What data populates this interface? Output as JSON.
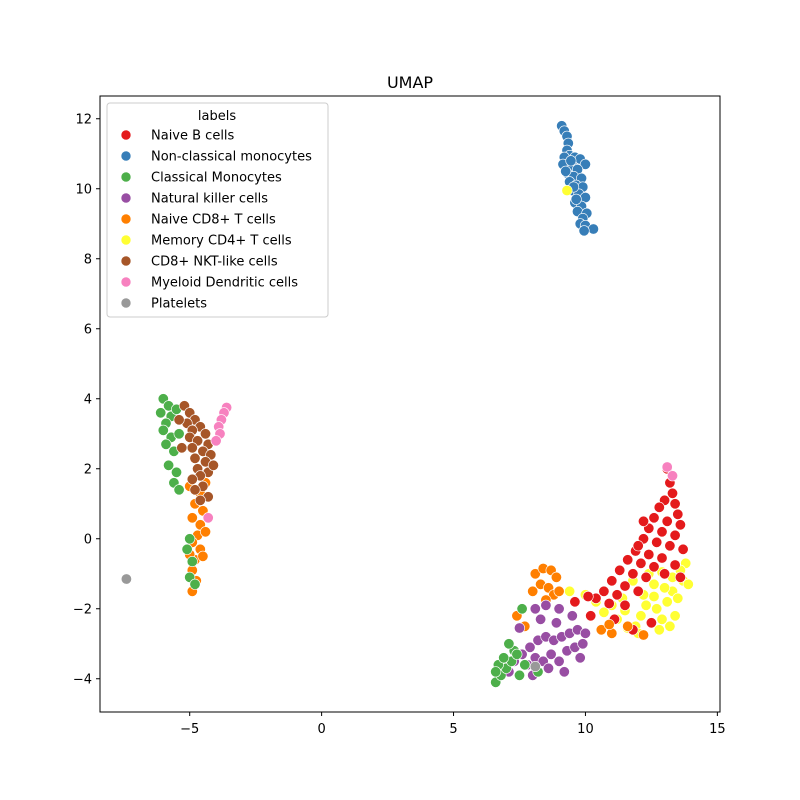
{
  "chart_data": {
    "type": "scatter",
    "title": "UMAP",
    "xlabel": "",
    "ylabel": "",
    "xlim": [
      -8.4,
      15.1
    ],
    "ylim": [
      -4.95,
      12.65
    ],
    "xticks": [
      -5,
      0,
      5,
      10,
      15
    ],
    "yticks": [
      -4,
      -2,
      0,
      2,
      4,
      6,
      8,
      10,
      12
    ],
    "grid": false,
    "legend": {
      "title": "labels",
      "placement": "top-left",
      "entries": [
        "Naive B cells",
        "Non-classical monocytes",
        "Classical Monocytes",
        "Natural killer  cells",
        "Naive CD8+ T cells",
        "Memory CD4+ T cells",
        "CD8+ NKT-like cells",
        "Myeloid Dendritic cells",
        "Platelets"
      ]
    },
    "colors": {
      "Naive B cells": "#e41a1c",
      "Non-classical monocytes": "#377eb8",
      "Classical Monocytes": "#4daf4a",
      "Natural killer  cells": "#984ea3",
      "Naive CD8+ T cells": "#ff7f00",
      "Memory CD4+ T cells": "#ffff33",
      "CD8+ NKT-like cells": "#a65628",
      "Myeloid Dendritic cells": "#f781bf",
      "Platelets": "#999999"
    },
    "series": [
      {
        "name": "Non-classical monocytes",
        "points": [
          [
            9.1,
            11.8
          ],
          [
            9.2,
            11.65
          ],
          [
            9.3,
            11.5
          ],
          [
            9.35,
            11.3
          ],
          [
            9.3,
            11.1
          ],
          [
            9.4,
            10.95
          ],
          [
            9.2,
            10.9
          ],
          [
            9.6,
            10.9
          ],
          [
            9.8,
            10.85
          ],
          [
            10.0,
            10.7
          ],
          [
            9.15,
            10.7
          ],
          [
            9.5,
            10.65
          ],
          [
            9.7,
            10.55
          ],
          [
            9.3,
            10.45
          ],
          [
            9.55,
            10.35
          ],
          [
            9.85,
            10.3
          ],
          [
            9.4,
            10.2
          ],
          [
            9.65,
            10.1
          ],
          [
            9.9,
            10.05
          ],
          [
            9.5,
            9.95
          ],
          [
            9.75,
            9.85
          ],
          [
            10.0,
            9.75
          ],
          [
            9.6,
            9.6
          ],
          [
            9.85,
            9.5
          ],
          [
            9.7,
            9.35
          ],
          [
            10.05,
            9.3
          ],
          [
            9.9,
            9.15
          ],
          [
            9.8,
            9.0
          ],
          [
            10.0,
            8.95
          ],
          [
            10.3,
            8.85
          ],
          [
            9.95,
            8.8
          ],
          [
            9.25,
            10.5
          ],
          [
            9.45,
            10.8
          ],
          [
            9.65,
            9.7
          ],
          [
            9.55,
            10.05
          ]
        ]
      },
      {
        "name": "Memory CD4+ T cells",
        "points": [
          [
            9.3,
            9.95
          ],
          [
            9.4,
            -1.5
          ],
          [
            10.0,
            -1.6
          ],
          [
            10.7,
            -2.1
          ],
          [
            11.2,
            -2.3
          ],
          [
            11.5,
            -2.05
          ],
          [
            11.9,
            -2.5
          ],
          [
            12.1,
            -2.2
          ],
          [
            12.3,
            -1.9
          ],
          [
            12.5,
            -2.4
          ],
          [
            12.7,
            -2.0
          ],
          [
            12.9,
            -2.3
          ],
          [
            13.1,
            -1.8
          ],
          [
            13.3,
            -1.5
          ],
          [
            13.5,
            -1.7
          ],
          [
            13.7,
            -1.2
          ],
          [
            13.8,
            -0.7
          ],
          [
            13.6,
            -0.9
          ],
          [
            13.3,
            -1.1
          ],
          [
            13.0,
            -1.4
          ],
          [
            12.6,
            -1.3
          ],
          [
            12.2,
            -1.6
          ],
          [
            11.8,
            -1.2
          ],
          [
            11.4,
            -1.7
          ],
          [
            12.8,
            -2.6
          ],
          [
            12.0,
            -2.7
          ],
          [
            11.6,
            -2.55
          ],
          [
            13.4,
            -2.2
          ],
          [
            12.4,
            -1.0
          ],
          [
            13.9,
            -1.3
          ],
          [
            11.0,
            -1.9
          ],
          [
            10.4,
            -1.8
          ],
          [
            12.6,
            -1.65
          ],
          [
            13.2,
            -2.5
          ],
          [
            12.9,
            -0.95
          ]
        ]
      },
      {
        "name": "Naive B cells",
        "points": [
          [
            13.1,
            2.0
          ],
          [
            13.2,
            1.6
          ],
          [
            13.3,
            1.3
          ],
          [
            13.0,
            1.1
          ],
          [
            13.4,
            1.0
          ],
          [
            12.8,
            0.9
          ],
          [
            13.5,
            0.7
          ],
          [
            12.6,
            0.6
          ],
          [
            13.1,
            0.5
          ],
          [
            13.6,
            0.4
          ],
          [
            12.4,
            0.3
          ],
          [
            12.9,
            0.2
          ],
          [
            13.4,
            0.1
          ],
          [
            12.2,
            0.0
          ],
          [
            12.7,
            -0.1
          ],
          [
            13.2,
            -0.2
          ],
          [
            13.7,
            -0.3
          ],
          [
            11.9,
            -0.35
          ],
          [
            12.4,
            -0.45
          ],
          [
            12.9,
            -0.55
          ],
          [
            11.6,
            -0.6
          ],
          [
            12.1,
            -0.7
          ],
          [
            13.4,
            -0.75
          ],
          [
            11.3,
            -0.9
          ],
          [
            11.8,
            -1.0
          ],
          [
            12.3,
            -1.1
          ],
          [
            13.0,
            -1.0
          ],
          [
            11.0,
            -1.2
          ],
          [
            11.5,
            -1.35
          ],
          [
            10.7,
            -1.5
          ],
          [
            11.2,
            -1.6
          ],
          [
            10.4,
            -1.7
          ],
          [
            10.9,
            -1.85
          ],
          [
            10.1,
            -1.65
          ],
          [
            11.5,
            -1.9
          ],
          [
            12.0,
            -1.5
          ],
          [
            12.6,
            -0.8
          ],
          [
            13.6,
            -1.1
          ],
          [
            12.5,
            -2.4
          ],
          [
            11.8,
            -2.6
          ],
          [
            9.6,
            -1.8
          ],
          [
            10.2,
            -2.2
          ],
          [
            11.1,
            -2.3
          ],
          [
            12.2,
            0.5
          ],
          [
            12.0,
            -0.2
          ]
        ]
      },
      {
        "name": "Naive CD8+ T cells",
        "points": [
          [
            8.1,
            -1.0
          ],
          [
            8.4,
            -0.85
          ],
          [
            8.7,
            -0.9
          ],
          [
            8.9,
            -1.1
          ],
          [
            8.3,
            -1.3
          ],
          [
            8.6,
            -1.4
          ],
          [
            8.0,
            -1.5
          ],
          [
            8.8,
            -1.6
          ],
          [
            8.5,
            -1.75
          ],
          [
            9.0,
            -1.5
          ],
          [
            7.4,
            -2.2
          ],
          [
            7.7,
            -2.5
          ],
          [
            10.6,
            -2.6
          ],
          [
            11.0,
            -2.7
          ],
          [
            11.6,
            -2.5
          ],
          [
            12.2,
            -2.75
          ],
          [
            10.9,
            -2.45
          ],
          [
            -5.0,
            1.5
          ],
          [
            -4.6,
            1.3
          ],
          [
            -4.4,
            1.6
          ],
          [
            -4.8,
            1.0
          ],
          [
            -4.5,
            0.8
          ],
          [
            -4.9,
            0.6
          ],
          [
            -4.6,
            0.4
          ],
          [
            -4.7,
            0.1
          ],
          [
            -4.9,
            -0.1
          ],
          [
            -4.6,
            -0.3
          ],
          [
            -4.8,
            -0.6
          ],
          [
            -4.9,
            -0.9
          ],
          [
            -4.75,
            -1.2
          ],
          [
            -4.9,
            -1.5
          ],
          [
            -4.5,
            -0.5
          ],
          [
            -4.4,
            0.2
          ],
          [
            -5.0,
            -0.45
          ]
        ]
      },
      {
        "name": "Natural killer  cells",
        "points": [
          [
            7.3,
            -3.5
          ],
          [
            7.6,
            -3.3
          ],
          [
            7.9,
            -3.1
          ],
          [
            8.2,
            -2.9
          ],
          [
            8.5,
            -2.8
          ],
          [
            8.8,
            -2.9
          ],
          [
            9.1,
            -2.8
          ],
          [
            9.4,
            -2.7
          ],
          [
            9.7,
            -2.6
          ],
          [
            10.0,
            -2.7
          ],
          [
            7.8,
            -3.6
          ],
          [
            8.1,
            -3.4
          ],
          [
            8.4,
            -3.5
          ],
          [
            8.7,
            -3.3
          ],
          [
            9.0,
            -3.5
          ],
          [
            9.3,
            -3.2
          ],
          [
            9.6,
            -3.1
          ],
          [
            9.9,
            -3.0
          ],
          [
            8.0,
            -3.9
          ],
          [
            8.6,
            -3.7
          ],
          [
            9.2,
            -3.8
          ],
          [
            8.3,
            -2.3
          ],
          [
            8.9,
            -2.4
          ],
          [
            9.5,
            -2.2
          ],
          [
            8.1,
            -2.0
          ],
          [
            7.5,
            -2.55
          ],
          [
            9.8,
            -3.4
          ],
          [
            7.1,
            -3.8
          ],
          [
            8.5,
            -1.9
          ],
          [
            9.0,
            -2.0
          ]
        ]
      },
      {
        "name": "Classical Monocytes",
        "points": [
          [
            6.6,
            -4.1
          ],
          [
            6.8,
            -3.9
          ],
          [
            7.0,
            -3.7
          ],
          [
            6.7,
            -3.6
          ],
          [
            7.2,
            -3.5
          ],
          [
            6.9,
            -3.4
          ],
          [
            7.3,
            -3.2
          ],
          [
            7.1,
            -3.0
          ],
          [
            7.4,
            -3.3
          ],
          [
            6.6,
            -3.8
          ],
          [
            7.5,
            -3.9
          ],
          [
            7.7,
            -3.6
          ],
          [
            7.6,
            -2.0
          ],
          [
            8.2,
            -3.8
          ],
          [
            -6.0,
            4.0
          ],
          [
            -5.8,
            3.8
          ],
          [
            -6.1,
            3.6
          ],
          [
            -5.7,
            3.5
          ],
          [
            -5.9,
            3.3
          ],
          [
            -6.0,
            3.1
          ],
          [
            -5.7,
            2.9
          ],
          [
            -5.9,
            2.7
          ],
          [
            -5.6,
            2.5
          ],
          [
            -5.8,
            2.1
          ],
          [
            -5.5,
            1.9
          ],
          [
            -5.6,
            1.6
          ],
          [
            -5.4,
            1.4
          ],
          [
            -5.0,
            0.0
          ],
          [
            -5.1,
            -0.3
          ],
          [
            -4.9,
            -0.65
          ],
          [
            -5.0,
            -1.1
          ],
          [
            -4.8,
            -1.3
          ],
          [
            -5.5,
            3.7
          ],
          [
            -5.4,
            3.0
          ]
        ]
      },
      {
        "name": "CD8+ NKT-like cells",
        "points": [
          [
            -5.2,
            3.8
          ],
          [
            -5.0,
            3.6
          ],
          [
            -4.8,
            3.4
          ],
          [
            -5.1,
            3.3
          ],
          [
            -4.6,
            3.2
          ],
          [
            -4.9,
            3.1
          ],
          [
            -4.4,
            3.0
          ],
          [
            -5.0,
            2.9
          ],
          [
            -4.7,
            2.8
          ],
          [
            -4.3,
            2.7
          ],
          [
            -4.9,
            2.6
          ],
          [
            -4.5,
            2.5
          ],
          [
            -4.2,
            2.4
          ],
          [
            -4.8,
            2.3
          ],
          [
            -4.4,
            2.2
          ],
          [
            -4.7,
            2.0
          ],
          [
            -4.3,
            1.9
          ],
          [
            -4.6,
            1.8
          ],
          [
            -4.9,
            1.7
          ],
          [
            -4.5,
            1.5
          ],
          [
            -4.8,
            1.4
          ],
          [
            -4.3,
            1.2
          ],
          [
            -4.6,
            1.1
          ],
          [
            -5.3,
            2.6
          ],
          [
            -5.4,
            3.4
          ],
          [
            -4.1,
            2.1
          ]
        ]
      },
      {
        "name": "Myeloid Dendritic cells",
        "points": [
          [
            -3.6,
            3.75
          ],
          [
            -3.7,
            3.6
          ],
          [
            -3.8,
            3.4
          ],
          [
            -3.9,
            3.2
          ],
          [
            -3.85,
            3.0
          ],
          [
            -4.0,
            2.8
          ],
          [
            -4.3,
            0.6
          ],
          [
            13.1,
            2.05
          ],
          [
            13.3,
            1.8
          ]
        ]
      },
      {
        "name": "Platelets",
        "points": [
          [
            -7.4,
            -1.15
          ],
          [
            8.1,
            -3.65
          ]
        ]
      }
    ]
  }
}
